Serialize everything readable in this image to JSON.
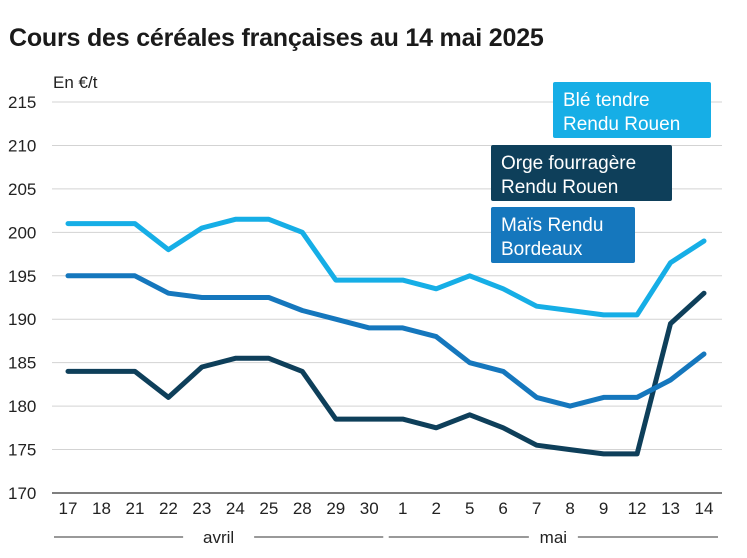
{
  "chart_data": {
    "type": "line",
    "title": "Cours des céréales françaises au 14 mai 2025",
    "ylabel": "En €/t",
    "ylim": [
      170,
      215
    ],
    "yticks": [
      170,
      175,
      180,
      185,
      190,
      195,
      200,
      205,
      210,
      215
    ],
    "categories": [
      "17",
      "18",
      "21",
      "22",
      "23",
      "24",
      "25",
      "28",
      "29",
      "30",
      "1",
      "2",
      "5",
      "6",
      "7",
      "8",
      "9",
      "12",
      "13",
      "14"
    ],
    "month_groups": [
      {
        "label": "avril",
        "from": 0,
        "to": 9
      },
      {
        "label": "mai",
        "from": 10,
        "to": 19
      }
    ],
    "grid": true,
    "legend_position": "top-right",
    "series": [
      {
        "name": "Blé tendre Rendu Rouen",
        "color": "#16aee6",
        "values": [
          201,
          201,
          201,
          198,
          200.5,
          201.5,
          201.5,
          200,
          194.5,
          194.5,
          194.5,
          193.5,
          195,
          193.5,
          191.5,
          191,
          190.5,
          190.5,
          196.5,
          199
        ]
      },
      {
        "name": "Orge fourragère Rendu Rouen",
        "color": "#0e3f5a",
        "values": [
          184,
          184,
          184,
          181,
          184.5,
          185.5,
          185.5,
          184,
          178.5,
          178.5,
          178.5,
          177.5,
          179,
          177.5,
          175.5,
          175,
          174.5,
          174.5,
          189.5,
          193
        ]
      },
      {
        "name": "Maïs Rendu Bordeaux",
        "color": "#1577bd",
        "values": [
          195,
          195,
          195,
          193,
          192.5,
          192.5,
          192.5,
          191,
          190,
          189,
          189,
          188,
          185,
          184,
          181,
          180,
          181,
          181,
          183,
          186
        ]
      }
    ]
  },
  "legend_lines": [
    [
      "Blé tendre",
      "Rendu Rouen"
    ],
    [
      "Orge fourragère",
      "Rendu Rouen"
    ],
    [
      "Maïs Rendu",
      "Bordeaux"
    ]
  ]
}
